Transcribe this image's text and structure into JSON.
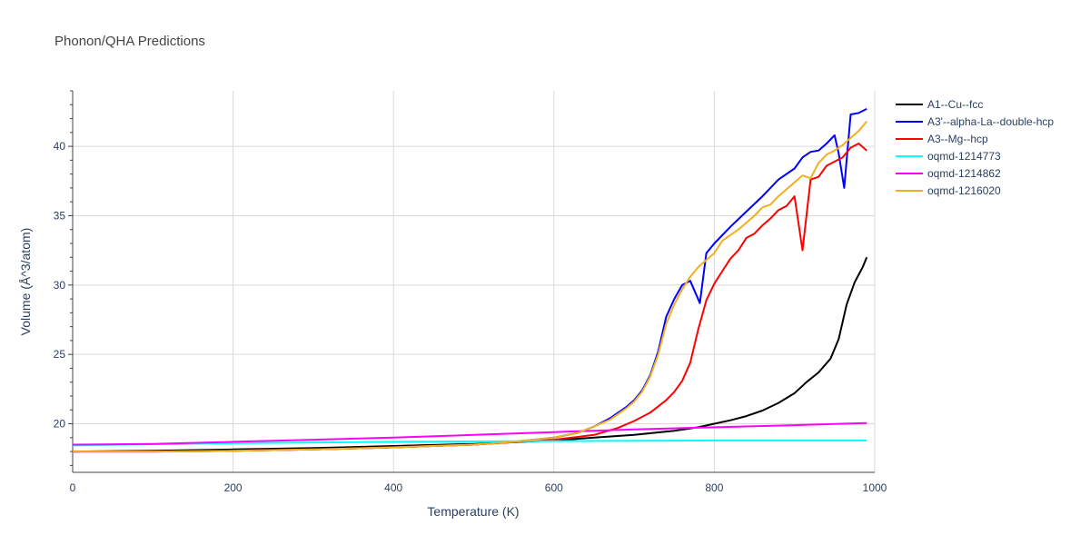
{
  "chart_data": {
    "type": "line",
    "title": "Phonon/QHA Predictions",
    "xlabel": "Temperature (K)",
    "ylabel": "Volume (Å^3/atom)",
    "xlim": [
      0,
      1000
    ],
    "ylim": [
      16.5,
      44
    ],
    "x_ticks": [
      0,
      200,
      400,
      600,
      800,
      1000
    ],
    "y_ticks": [
      20,
      25,
      30,
      35,
      40
    ],
    "grid": true,
    "legend_position": "top-right",
    "series": [
      {
        "name": "A1--Cu--fcc",
        "color": "#000000",
        "points": [
          [
            0,
            18.0
          ],
          [
            100,
            18.05
          ],
          [
            200,
            18.15
          ],
          [
            300,
            18.25
          ],
          [
            400,
            18.4
          ],
          [
            500,
            18.55
          ],
          [
            600,
            18.8
          ],
          [
            650,
            19.0
          ],
          [
            700,
            19.2
          ],
          [
            750,
            19.5
          ],
          [
            780,
            19.75
          ],
          [
            800,
            20.0
          ],
          [
            820,
            20.25
          ],
          [
            840,
            20.55
          ],
          [
            860,
            20.95
          ],
          [
            880,
            21.5
          ],
          [
            900,
            22.2
          ],
          [
            915,
            23.0
          ],
          [
            930,
            23.7
          ],
          [
            945,
            24.7
          ],
          [
            955,
            26.1
          ],
          [
            965,
            28.6
          ],
          [
            975,
            30.2
          ],
          [
            985,
            31.3
          ],
          [
            990,
            32.0
          ]
        ]
      },
      {
        "name": "A3'--alpha-La--double-hcp",
        "color": "#0000ff",
        "points": [
          [
            0,
            18.0
          ],
          [
            100,
            18.0
          ],
          [
            200,
            18.05
          ],
          [
            300,
            18.15
          ],
          [
            400,
            18.3
          ],
          [
            500,
            18.5
          ],
          [
            550,
            18.7
          ],
          [
            600,
            19.0
          ],
          [
            630,
            19.35
          ],
          [
            650,
            19.8
          ],
          [
            670,
            20.4
          ],
          [
            690,
            21.2
          ],
          [
            700,
            21.7
          ],
          [
            710,
            22.4
          ],
          [
            720,
            23.5
          ],
          [
            730,
            25.2
          ],
          [
            740,
            27.7
          ],
          [
            750,
            29.0
          ],
          [
            760,
            30.0
          ],
          [
            770,
            30.3
          ],
          [
            782,
            28.7
          ],
          [
            790,
            32.3
          ],
          [
            800,
            33.0
          ],
          [
            820,
            34.2
          ],
          [
            840,
            35.3
          ],
          [
            860,
            36.4
          ],
          [
            880,
            37.6
          ],
          [
            900,
            38.4
          ],
          [
            910,
            39.2
          ],
          [
            920,
            39.6
          ],
          [
            930,
            39.7
          ],
          [
            940,
            40.2
          ],
          [
            950,
            40.8
          ],
          [
            955,
            39.5
          ],
          [
            962,
            37.0
          ],
          [
            970,
            42.3
          ],
          [
            980,
            42.4
          ],
          [
            990,
            42.7
          ]
        ]
      },
      {
        "name": "A3--Mg--hcp",
        "color": "#ff0000",
        "points": [
          [
            0,
            18.0
          ],
          [
            100,
            18.0
          ],
          [
            200,
            18.05
          ],
          [
            300,
            18.15
          ],
          [
            400,
            18.3
          ],
          [
            500,
            18.5
          ],
          [
            600,
            18.85
          ],
          [
            650,
            19.2
          ],
          [
            680,
            19.7
          ],
          [
            700,
            20.2
          ],
          [
            720,
            20.8
          ],
          [
            740,
            21.7
          ],
          [
            750,
            22.3
          ],
          [
            760,
            23.1
          ],
          [
            770,
            24.4
          ],
          [
            780,
            26.8
          ],
          [
            790,
            28.9
          ],
          [
            800,
            30.1
          ],
          [
            810,
            31.0
          ],
          [
            820,
            31.9
          ],
          [
            830,
            32.5
          ],
          [
            840,
            33.4
          ],
          [
            850,
            33.7
          ],
          [
            860,
            34.3
          ],
          [
            870,
            34.8
          ],
          [
            880,
            35.4
          ],
          [
            890,
            35.7
          ],
          [
            900,
            36.4
          ],
          [
            910,
            32.5
          ],
          [
            920,
            37.6
          ],
          [
            930,
            37.8
          ],
          [
            940,
            38.6
          ],
          [
            950,
            38.9
          ],
          [
            960,
            39.2
          ],
          [
            970,
            39.9
          ],
          [
            980,
            40.2
          ],
          [
            990,
            39.7
          ]
        ]
      },
      {
        "name": "oqmd-1214773",
        "color": "#00ffff",
        "points": [
          [
            0,
            18.45
          ],
          [
            200,
            18.6
          ],
          [
            400,
            18.7
          ],
          [
            600,
            18.75
          ],
          [
            800,
            18.8
          ],
          [
            990,
            18.8
          ]
        ]
      },
      {
        "name": "oqmd-1214862",
        "color": "#ff00ff",
        "points": [
          [
            0,
            18.5
          ],
          [
            100,
            18.55
          ],
          [
            200,
            18.7
          ],
          [
            300,
            18.85
          ],
          [
            400,
            19.0
          ],
          [
            500,
            19.2
          ],
          [
            600,
            19.4
          ],
          [
            700,
            19.6
          ],
          [
            800,
            19.75
          ],
          [
            900,
            19.9
          ],
          [
            990,
            20.05
          ]
        ]
      },
      {
        "name": "oqmd-1216020",
        "color": "#f0b020",
        "points": [
          [
            0,
            18.0
          ],
          [
            100,
            18.0
          ],
          [
            200,
            18.05
          ],
          [
            300,
            18.15
          ],
          [
            400,
            18.3
          ],
          [
            500,
            18.5
          ],
          [
            550,
            18.7
          ],
          [
            600,
            19.0
          ],
          [
            630,
            19.35
          ],
          [
            650,
            19.8
          ],
          [
            670,
            20.3
          ],
          [
            690,
            21.1
          ],
          [
            700,
            21.6
          ],
          [
            710,
            22.3
          ],
          [
            720,
            23.4
          ],
          [
            730,
            25.0
          ],
          [
            740,
            27.2
          ],
          [
            750,
            28.6
          ],
          [
            760,
            29.7
          ],
          [
            770,
            30.6
          ],
          [
            780,
            31.3
          ],
          [
            790,
            31.8
          ],
          [
            800,
            32.3
          ],
          [
            810,
            33.2
          ],
          [
            820,
            33.6
          ],
          [
            830,
            34.0
          ],
          [
            840,
            34.5
          ],
          [
            850,
            35.0
          ],
          [
            860,
            35.6
          ],
          [
            870,
            35.8
          ],
          [
            880,
            36.4
          ],
          [
            890,
            36.9
          ],
          [
            900,
            37.4
          ],
          [
            910,
            37.9
          ],
          [
            920,
            37.7
          ],
          [
            930,
            38.8
          ],
          [
            940,
            39.4
          ],
          [
            950,
            39.7
          ],
          [
            960,
            40.1
          ],
          [
            970,
            40.6
          ],
          [
            980,
            41.1
          ],
          [
            990,
            41.8
          ]
        ]
      }
    ]
  }
}
